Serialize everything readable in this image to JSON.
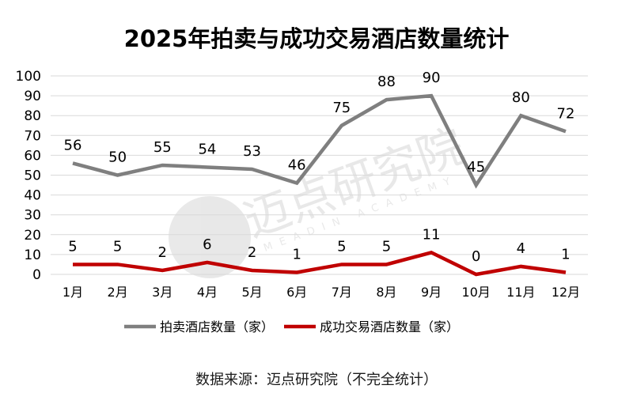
{
  "chart_data": {
    "type": "line",
    "title": "2025年拍卖与成功交易酒店数量统计",
    "categories": [
      "1月",
      "2月",
      "3月",
      "4月",
      "5月",
      "6月",
      "7月",
      "8月",
      "9月",
      "10月",
      "11月",
      "12月"
    ],
    "series": [
      {
        "name": "拍卖酒店数量（家）",
        "color": "#7f7f7f",
        "values": [
          56,
          50,
          55,
          54,
          53,
          46,
          75,
          88,
          90,
          45,
          80,
          72
        ]
      },
      {
        "name": "成功交易酒店数量（家）",
        "color": "#c00000",
        "values": [
          5,
          5,
          2,
          6,
          2,
          1,
          5,
          5,
          11,
          0,
          4,
          1
        ]
      }
    ],
    "xlabel": "",
    "ylabel": "",
    "ylim": [
      0,
      100
    ],
    "yticks": [
      0,
      10,
      20,
      30,
      40,
      50,
      60,
      70,
      80,
      90,
      100
    ],
    "grid": true,
    "legend_position": "bottom",
    "data_labels": true
  },
  "watermark": {
    "text": "迈点研究院",
    "subtext": "MEADIN ACADEMY"
  },
  "footer": {
    "source": "数据来源：迈点研究院（不完全统计）"
  }
}
